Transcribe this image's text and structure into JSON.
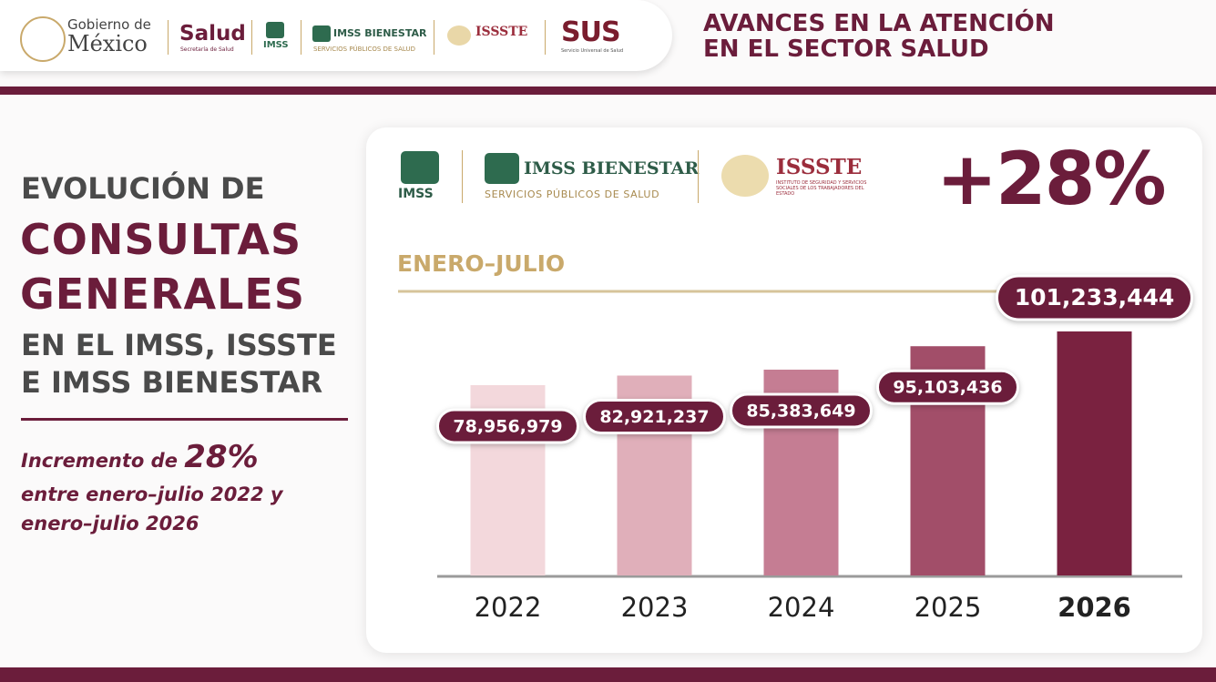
{
  "header": {
    "gobierno_top": "Gobierno de",
    "gobierno_bottom": "México",
    "salud": "Salud",
    "salud_sub": "Secretaría de Salud",
    "imss": "IMSS",
    "imss_bienestar": "IMSS BIENESTAR",
    "imss_bienestar_sub": "SERVICIOS PÚBLICOS DE SALUD",
    "issste": "ISSSTE",
    "sus": "SUS",
    "sus_sub": "Servicio Universal de Salud",
    "title_line1": "AVANCES EN LA ATENCIÓN",
    "title_line2": "EN EL SECTOR SALUD"
  },
  "side": {
    "line1": "EVOLUCIÓN DE",
    "line2": "CONSULTAS",
    "line3": "GENERALES",
    "line4": "EN EL IMSS, ISSSTE",
    "line5": "E IMSS BIENESTAR",
    "note_prefix": "Incremento de",
    "note_highlight": "28%",
    "note_line2": "entre enero–julio 2022 y",
    "note_line3": "enero–julio 2026"
  },
  "card": {
    "imss": "IMSS",
    "imss_bienestar": "IMSS BIENESTAR",
    "imss_bienestar_sub": "SERVICIOS PÚBLICOS DE SALUD",
    "issste": "ISSSTE",
    "issste_sub": "INSTITUTO DE SEGURIDAD Y SERVICIOS SOCIALES DE LOS TRABAJADORES DEL ESTADO",
    "big_figure": "+28%"
  },
  "chart_data": {
    "type": "bar",
    "subtitle": "ENERO–JULIO",
    "categories": [
      "2022",
      "2023",
      "2024",
      "2025",
      "2026"
    ],
    "values": [
      78956979,
      82921237,
      85383649,
      95103436,
      101233444
    ],
    "value_labels": [
      "78,956,979",
      "82,921,237",
      "85,383,649",
      "95,103,436",
      "101,233,444"
    ],
    "colors": [
      "#f3d8dc",
      "#e0afba",
      "#c57d93",
      "#a24e69",
      "#7a2240"
    ]
  }
}
